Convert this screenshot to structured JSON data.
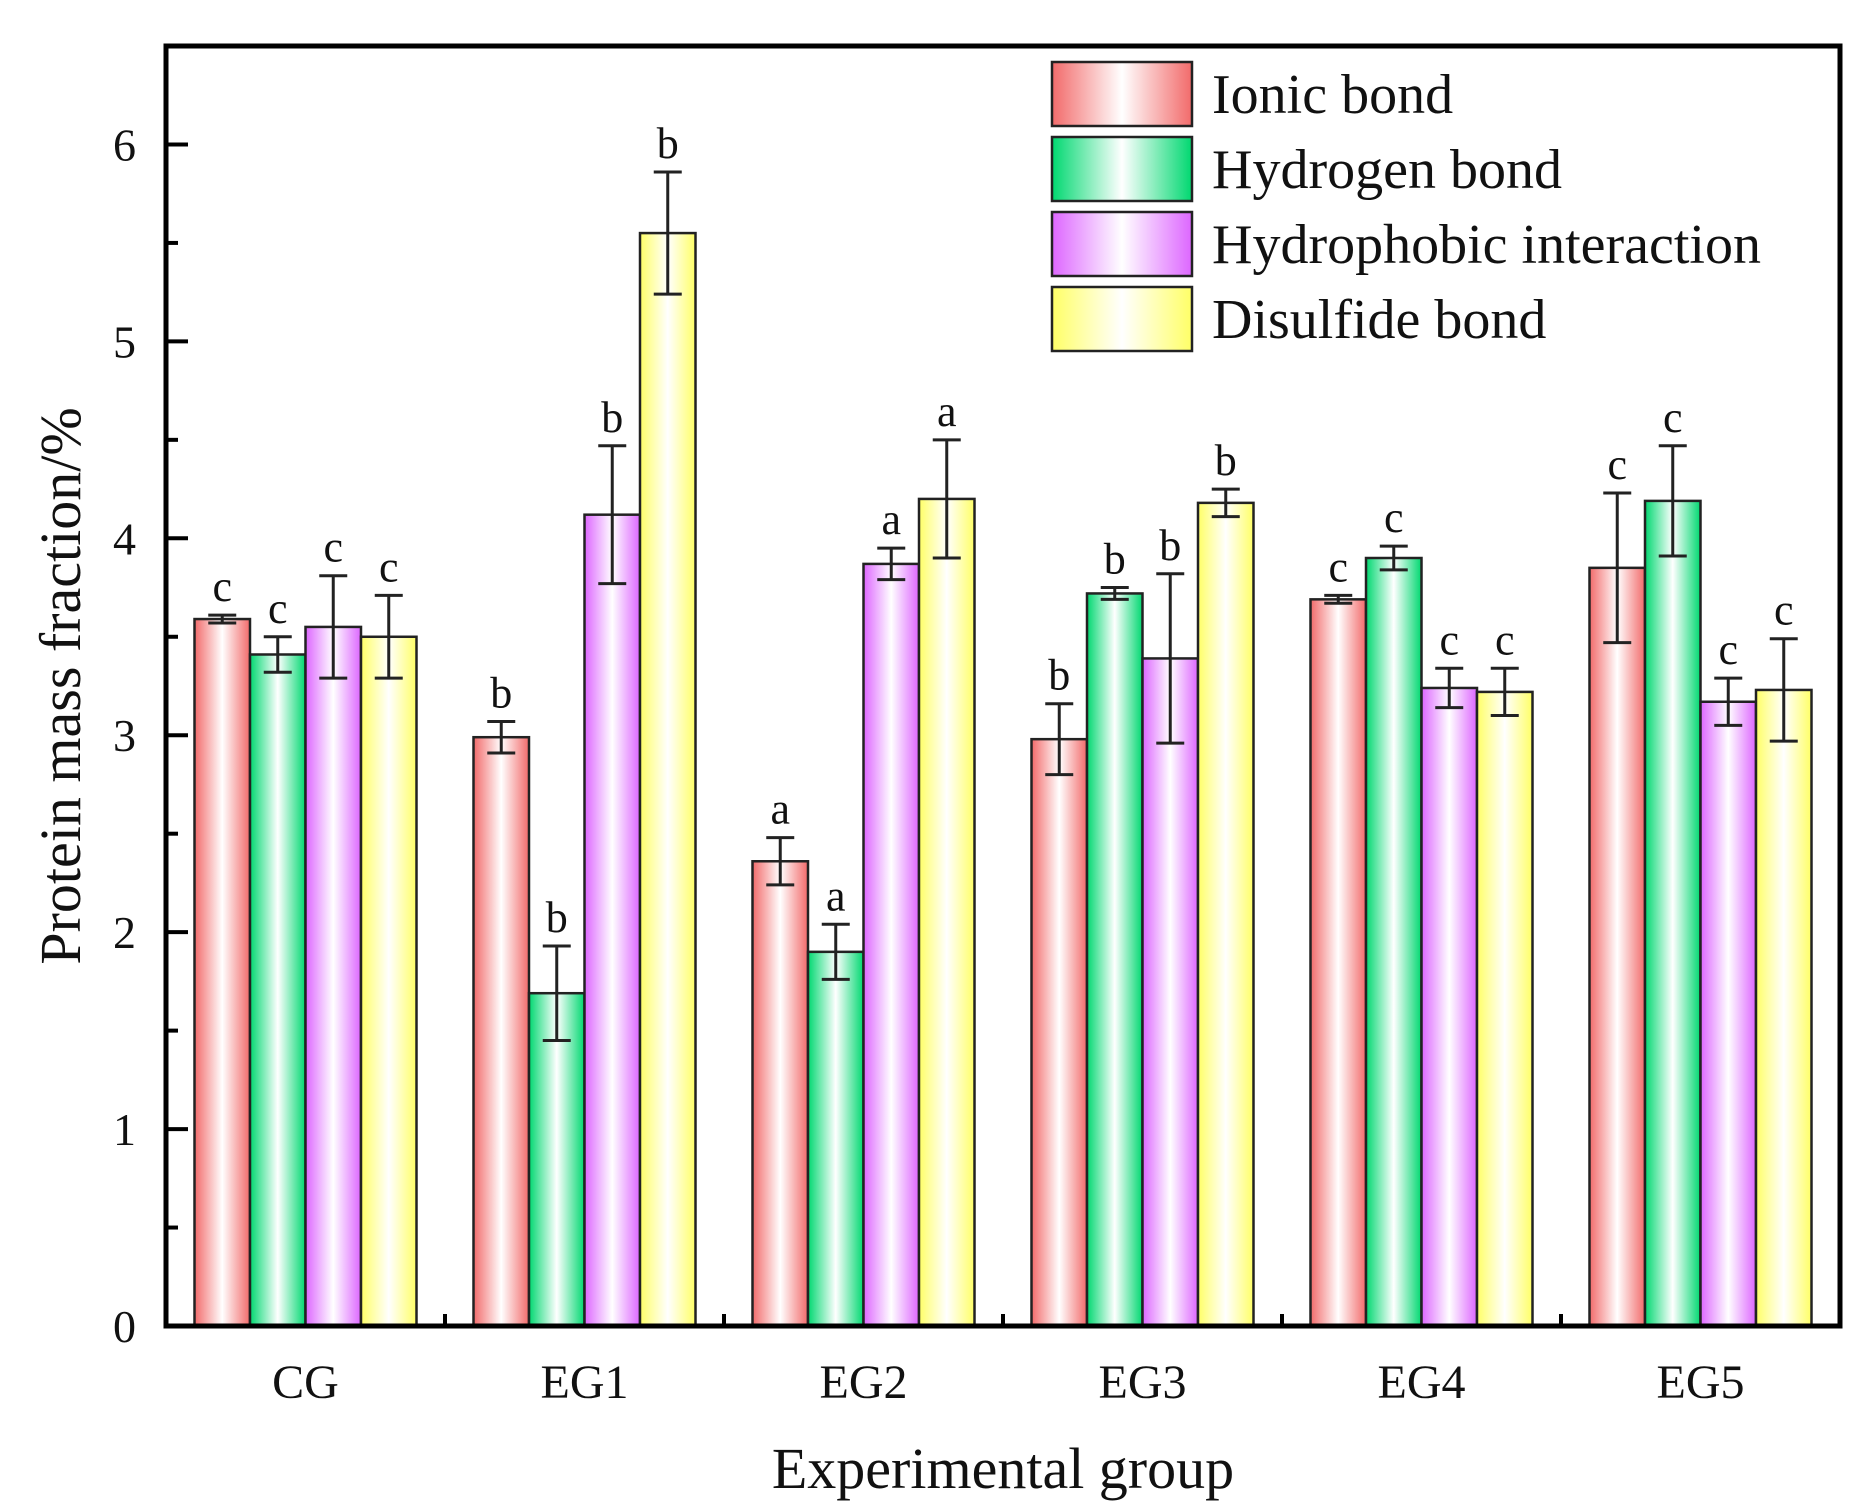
{
  "chart_data": {
    "type": "bar",
    "title": "",
    "xlabel": "Experimental group",
    "ylabel": "Protein mass fraction/%",
    "ylim": [
      0,
      6.5
    ],
    "yticks": [
      0,
      1,
      2,
      3,
      4,
      5,
      6
    ],
    "categories": [
      "CG",
      "EG1",
      "EG2",
      "EG3",
      "EG4",
      "EG5"
    ],
    "legend_position": "top-right",
    "series": [
      {
        "name": "Ionic bond",
        "color": "#f26a6a",
        "values": [
          3.59,
          2.99,
          2.36,
          2.98,
          3.69,
          3.85
        ],
        "errors": [
          0.02,
          0.08,
          0.12,
          0.18,
          0.02,
          0.38
        ],
        "letters": [
          "c",
          "b",
          "a",
          "b",
          "c",
          "c"
        ]
      },
      {
        "name": "Hydrogen bond",
        "color": "#00d870",
        "values": [
          3.41,
          1.69,
          1.9,
          3.72,
          3.9,
          4.19
        ],
        "errors": [
          0.09,
          0.24,
          0.14,
          0.03,
          0.06,
          0.28
        ],
        "letters": [
          "c",
          "b",
          "a",
          "b",
          "c",
          "c"
        ]
      },
      {
        "name": "Hydrophobic interaction",
        "color": "#dd66ff",
        "values": [
          3.55,
          4.12,
          3.87,
          3.39,
          3.24,
          3.17
        ],
        "errors": [
          0.26,
          0.35,
          0.08,
          0.43,
          0.1,
          0.12
        ],
        "letters": [
          "c",
          "b",
          "a",
          "b",
          "c",
          "c"
        ]
      },
      {
        "name": "Disulfide bond",
        "color": "#ffff66",
        "values": [
          3.5,
          5.55,
          4.2,
          4.18,
          3.22,
          3.23
        ],
        "errors": [
          0.21,
          0.31,
          0.3,
          0.07,
          0.12,
          0.26
        ],
        "letters": [
          "c",
          "b",
          "a",
          "b",
          "c",
          "c"
        ]
      }
    ]
  }
}
